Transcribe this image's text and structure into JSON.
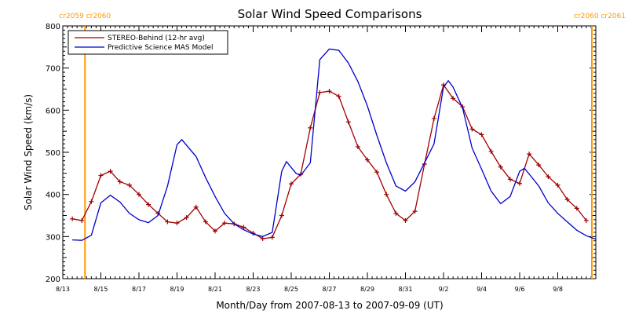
{
  "colors": {
    "stereo": "#a00000",
    "mas": "#0000cc",
    "marker_line": "#ff9900",
    "axis": "#000000"
  },
  "chart_data": {
    "type": "line",
    "title": "Solar Wind Speed Comparisons",
    "xlabel": "Month/Day from 2007-08-13 to 2007-09-09 (UT)",
    "ylabel": "Solar Wind Speed (km/s)",
    "xlim": [
      "2007-08-13",
      "2007-09-10"
    ],
    "ylim": [
      200,
      800
    ],
    "y_ticks": [
      200,
      300,
      400,
      500,
      600,
      700,
      800
    ],
    "x_ticks": [
      {
        "date": "2007-08-13",
        "label": "8/13"
      },
      {
        "date": "2007-08-15",
        "label": "8/15"
      },
      {
        "date": "2007-08-17",
        "label": "8/17"
      },
      {
        "date": "2007-08-19",
        "label": "8/19"
      },
      {
        "date": "2007-08-21",
        "label": "8/21"
      },
      {
        "date": "2007-08-23",
        "label": "8/23"
      },
      {
        "date": "2007-08-25",
        "label": "8/25"
      },
      {
        "date": "2007-08-27",
        "label": "8/27"
      },
      {
        "date": "2007-08-29",
        "label": "8/29"
      },
      {
        "date": "2007-08-31",
        "label": "8/31"
      },
      {
        "date": "2007-09-02",
        "label": "9/2"
      },
      {
        "date": "2007-09-04",
        "label": "9/4"
      },
      {
        "date": "2007-09-06",
        "label": "9/6"
      },
      {
        "date": "2007-09-08",
        "label": "9/8"
      }
    ],
    "grid": false,
    "legend": "top-left",
    "rotation_markers": [
      {
        "date": "2007-08-14T04:00",
        "label": "cr2059 cr2060"
      },
      {
        "date": "2007-09-09T19:00",
        "label": "cr2060 cr2061"
      }
    ],
    "series": [
      {
        "name": "STEREO-Behind (12-hr avg)",
        "markers": "plus",
        "points": [
          [
            "2007-08-13T12:00",
            342
          ],
          [
            "2007-08-14T00:00",
            338
          ],
          [
            "2007-08-14T12:00",
            383
          ],
          [
            "2007-08-15T00:00",
            445
          ],
          [
            "2007-08-15T12:00",
            455
          ],
          [
            "2007-08-16T00:00",
            430
          ],
          [
            "2007-08-16T12:00",
            422
          ],
          [
            "2007-08-17T00:00",
            400
          ],
          [
            "2007-08-17T12:00",
            376
          ],
          [
            "2007-08-18T00:00",
            355
          ],
          [
            "2007-08-18T12:00",
            335
          ],
          [
            "2007-08-19T00:00",
            332
          ],
          [
            "2007-08-19T12:00",
            345
          ],
          [
            "2007-08-20T00:00",
            370
          ],
          [
            "2007-08-20T12:00",
            335
          ],
          [
            "2007-08-21T00:00",
            313
          ],
          [
            "2007-08-21T12:00",
            332
          ],
          [
            "2007-08-22T00:00",
            330
          ],
          [
            "2007-08-22T12:00",
            322
          ],
          [
            "2007-08-23T00:00",
            308
          ],
          [
            "2007-08-23T12:00",
            295
          ],
          [
            "2007-08-24T00:00",
            298
          ],
          [
            "2007-08-24T12:00",
            350
          ],
          [
            "2007-08-25T00:00",
            425
          ],
          [
            "2007-08-25T12:00",
            448
          ],
          [
            "2007-08-26T00:00",
            558
          ],
          [
            "2007-08-26T12:00",
            642
          ],
          [
            "2007-08-27T00:00",
            645
          ],
          [
            "2007-08-27T12:00",
            633
          ],
          [
            "2007-08-28T00:00",
            572
          ],
          [
            "2007-08-28T12:00",
            513
          ],
          [
            "2007-08-29T00:00",
            482
          ],
          [
            "2007-08-29T12:00",
            453
          ],
          [
            "2007-08-30T00:00",
            400
          ],
          [
            "2007-08-30T12:00",
            355
          ],
          [
            "2007-08-31T00:00",
            338
          ],
          [
            "2007-08-31T12:00",
            360
          ],
          [
            "2007-09-01T00:00",
            472
          ],
          [
            "2007-09-01T12:00",
            580
          ],
          [
            "2007-09-02T00:00",
            660
          ],
          [
            "2007-09-02T12:00",
            628
          ],
          [
            "2007-09-03T00:00",
            608
          ],
          [
            "2007-09-03T12:00",
            555
          ],
          [
            "2007-09-04T00:00",
            542
          ],
          [
            "2007-09-04T12:00",
            502
          ],
          [
            "2007-09-05T00:00",
            465
          ],
          [
            "2007-09-05T12:00",
            436
          ],
          [
            "2007-09-06T00:00",
            426
          ],
          [
            "2007-09-06T12:00",
            496
          ],
          [
            "2007-09-07T00:00",
            470
          ],
          [
            "2007-09-07T12:00",
            442
          ],
          [
            "2007-09-08T00:00",
            422
          ],
          [
            "2007-09-08T12:00",
            388
          ],
          [
            "2007-09-09T00:00",
            367
          ],
          [
            "2007-09-09T12:00",
            338
          ]
        ]
      },
      {
        "name": "Predictive Science MAS Model",
        "markers": "none",
        "points": [
          [
            "2007-08-13T12:00",
            292
          ],
          [
            "2007-08-14T00:00",
            291
          ],
          [
            "2007-08-14T12:00",
            303
          ],
          [
            "2007-08-15T00:00",
            380
          ],
          [
            "2007-08-15T12:00",
            398
          ],
          [
            "2007-08-16T00:00",
            382
          ],
          [
            "2007-08-16T12:00",
            355
          ],
          [
            "2007-08-17T00:00",
            340
          ],
          [
            "2007-08-17T12:00",
            333
          ],
          [
            "2007-08-18T00:00",
            350
          ],
          [
            "2007-08-18T12:00",
            420
          ],
          [
            "2007-08-19T00:00",
            518
          ],
          [
            "2007-08-19T06:00",
            530
          ],
          [
            "2007-08-20T00:00",
            490
          ],
          [
            "2007-08-20T12:00",
            440
          ],
          [
            "2007-08-21T00:00",
            395
          ],
          [
            "2007-08-21T12:00",
            355
          ],
          [
            "2007-08-22T00:00",
            330
          ],
          [
            "2007-08-22T12:00",
            316
          ],
          [
            "2007-08-23T00:00",
            306
          ],
          [
            "2007-08-23T12:00",
            300
          ],
          [
            "2007-08-24T00:00",
            310
          ],
          [
            "2007-08-24T12:00",
            455
          ],
          [
            "2007-08-24T18:00",
            478
          ],
          [
            "2007-08-25T06:00",
            450
          ],
          [
            "2007-08-25T12:00",
            445
          ],
          [
            "2007-08-26T00:00",
            475
          ],
          [
            "2007-08-26T12:00",
            720
          ],
          [
            "2007-08-27T00:00",
            745
          ],
          [
            "2007-08-27T12:00",
            742
          ],
          [
            "2007-08-28T00:00",
            712
          ],
          [
            "2007-08-28T12:00",
            668
          ],
          [
            "2007-08-29T00:00",
            610
          ],
          [
            "2007-08-29T12:00",
            540
          ],
          [
            "2007-08-30T00:00",
            475
          ],
          [
            "2007-08-30T12:00",
            420
          ],
          [
            "2007-08-31T00:00",
            408
          ],
          [
            "2007-08-31T12:00",
            430
          ],
          [
            "2007-09-01T00:00",
            475
          ],
          [
            "2007-09-01T12:00",
            520
          ],
          [
            "2007-09-02T00:00",
            655
          ],
          [
            "2007-09-02T06:00",
            670
          ],
          [
            "2007-09-02T12:00",
            655
          ],
          [
            "2007-09-03T00:00",
            605
          ],
          [
            "2007-09-03T12:00",
            510
          ],
          [
            "2007-09-04T00:00",
            460
          ],
          [
            "2007-09-04T12:00",
            408
          ],
          [
            "2007-09-05T00:00",
            378
          ],
          [
            "2007-09-05T12:00",
            395
          ],
          [
            "2007-09-06T00:00",
            455
          ],
          [
            "2007-09-06T06:00",
            462
          ],
          [
            "2007-09-07T00:00",
            420
          ],
          [
            "2007-09-07T12:00",
            380
          ],
          [
            "2007-09-08T00:00",
            355
          ],
          [
            "2007-09-08T12:00",
            335
          ],
          [
            "2007-09-09T00:00",
            315
          ],
          [
            "2007-09-09T12:00",
            302
          ],
          [
            "2007-09-10T00:00",
            294
          ]
        ]
      }
    ]
  }
}
